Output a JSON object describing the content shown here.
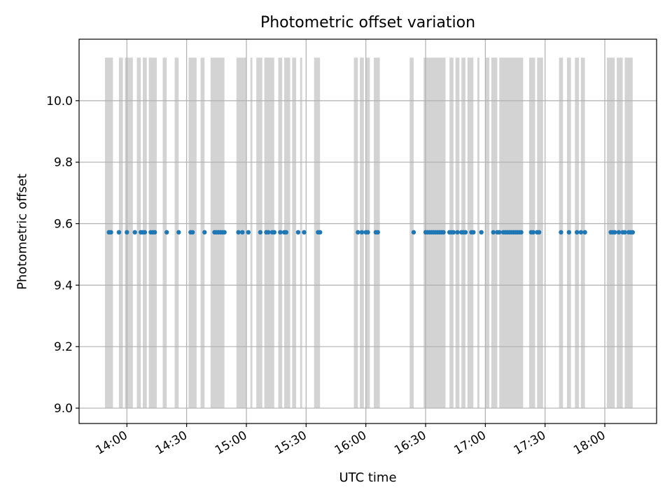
{
  "chart_data": {
    "type": "scatter",
    "title": "Photometric offset variation",
    "xlabel": "UTC time",
    "ylabel": "Photometric offset",
    "xlim": [
      "13:36",
      "18:26"
    ],
    "ylim": [
      8.95,
      10.2
    ],
    "x_ticks": [
      "14:00",
      "14:30",
      "15:00",
      "15:30",
      "16:00",
      "16:30",
      "17:00",
      "17:30",
      "18:00"
    ],
    "y_ticks": [
      "9.0",
      "9.2",
      "9.4",
      "9.6",
      "9.8",
      "10.0"
    ],
    "grid": true,
    "background_bands": {
      "color": "#d3d3d3",
      "y_range": [
        9.0,
        10.14
      ],
      "intervals": [
        [
          "13:49",
          "13:53"
        ],
        [
          "13:56",
          "13:58"
        ],
        [
          "13:59",
          "14:03"
        ],
        [
          "14:05",
          "14:07"
        ],
        [
          "14:08",
          "14:10"
        ],
        [
          "14:11",
          "14:15"
        ],
        [
          "14:18",
          "14:20"
        ],
        [
          "14:24",
          "14:26"
        ],
        [
          "14:31",
          "14:35"
        ],
        [
          "14:37",
          "14:39"
        ],
        [
          "14:42",
          "14:49"
        ],
        [
          "14:55",
          "15:00"
        ],
        [
          "15:02",
          "15:03"
        ],
        [
          "15:05",
          "15:08"
        ],
        [
          "15:09",
          "15:14"
        ],
        [
          "15:16",
          "15:18"
        ],
        [
          "15:19",
          "15:22"
        ],
        [
          "15:23",
          "15:25"
        ],
        [
          "15:27",
          "15:28"
        ],
        [
          "15:34",
          "15:37"
        ],
        [
          "15:54",
          "15:56"
        ],
        [
          "15:57",
          "15:59"
        ],
        [
          "16:00",
          "16:02"
        ],
        [
          "16:04",
          "16:07"
        ],
        [
          "16:22",
          "16:24"
        ],
        [
          "16:29",
          "16:40"
        ],
        [
          "16:42",
          "16:44"
        ],
        [
          "16:45",
          "16:47"
        ],
        [
          "16:48",
          "16:50"
        ],
        [
          "16:51",
          "16:54"
        ],
        [
          "16:56",
          "16:57"
        ],
        [
          "17:00",
          "17:02"
        ],
        [
          "17:03",
          "17:06"
        ],
        [
          "17:07",
          "17:19"
        ],
        [
          "17:22",
          "17:25"
        ],
        [
          "17:26",
          "17:29"
        ],
        [
          "17:37",
          "17:39"
        ],
        [
          "17:41",
          "17:43"
        ],
        [
          "17:45",
          "17:47"
        ],
        [
          "17:48",
          "17:50"
        ],
        [
          "18:01",
          "18:05"
        ],
        [
          "18:06",
          "18:09"
        ],
        [
          "18:10",
          "18:14"
        ]
      ]
    },
    "series": [
      {
        "color": "#1f77b4",
        "x": [
          "13:51",
          "13:52",
          "13:56",
          "14:00",
          "14:04",
          "14:07",
          "14:08",
          "14:09",
          "14:12",
          "14:13",
          "14:14",
          "14:20",
          "14:26",
          "14:32",
          "14:33",
          "14:39",
          "14:44",
          "14:45",
          "14:46",
          "14:47",
          "14:48",
          "14:49",
          "14:56",
          "14:58",
          "15:01",
          "15:07",
          "15:10",
          "15:11",
          "15:13",
          "15:14",
          "15:17",
          "15:19",
          "15:20",
          "15:26",
          "15:29",
          "15:36",
          "15:37",
          "15:56",
          "15:58",
          "16:00",
          "16:01",
          "16:05",
          "16:06",
          "16:24",
          "16:30",
          "16:31",
          "16:32",
          "16:33",
          "16:34",
          "16:35",
          "16:36",
          "16:37",
          "16:38",
          "16:39",
          "16:42",
          "16:43",
          "16:44",
          "16:46",
          "16:48",
          "16:49",
          "16:50",
          "16:53",
          "16:54",
          "16:58",
          "17:04",
          "17:06",
          "17:07",
          "17:09",
          "17:10",
          "17:11",
          "17:12",
          "17:13",
          "17:14",
          "17:15",
          "17:16",
          "17:17",
          "17:18",
          "17:23",
          "17:24",
          "17:26",
          "17:27",
          "17:38",
          "17:42",
          "17:46",
          "17:48",
          "17:50",
          "18:03",
          "18:04",
          "18:05",
          "18:07",
          "18:09",
          "18:10",
          "18:12",
          "18:13",
          "18:14"
        ],
        "y": [
          9.572,
          9.572,
          9.572,
          9.572,
          9.572,
          9.572,
          9.572,
          9.572,
          9.572,
          9.572,
          9.572,
          9.572,
          9.572,
          9.572,
          9.572,
          9.572,
          9.572,
          9.572,
          9.572,
          9.572,
          9.572,
          9.572,
          9.572,
          9.572,
          9.572,
          9.572,
          9.572,
          9.572,
          9.572,
          9.572,
          9.572,
          9.572,
          9.572,
          9.572,
          9.572,
          9.572,
          9.572,
          9.572,
          9.572,
          9.572,
          9.572,
          9.572,
          9.572,
          9.572,
          9.572,
          9.572,
          9.572,
          9.572,
          9.572,
          9.572,
          9.572,
          9.572,
          9.572,
          9.572,
          9.572,
          9.572,
          9.572,
          9.572,
          9.572,
          9.572,
          9.572,
          9.572,
          9.572,
          9.572,
          9.572,
          9.572,
          9.572,
          9.572,
          9.572,
          9.572,
          9.572,
          9.572,
          9.572,
          9.572,
          9.572,
          9.572,
          9.572,
          9.572,
          9.572,
          9.572,
          9.572,
          9.572,
          9.572,
          9.572,
          9.572,
          9.572,
          9.572,
          9.572,
          9.572,
          9.572,
          9.572,
          9.572,
          9.572,
          9.572,
          9.572
        ]
      }
    ]
  }
}
